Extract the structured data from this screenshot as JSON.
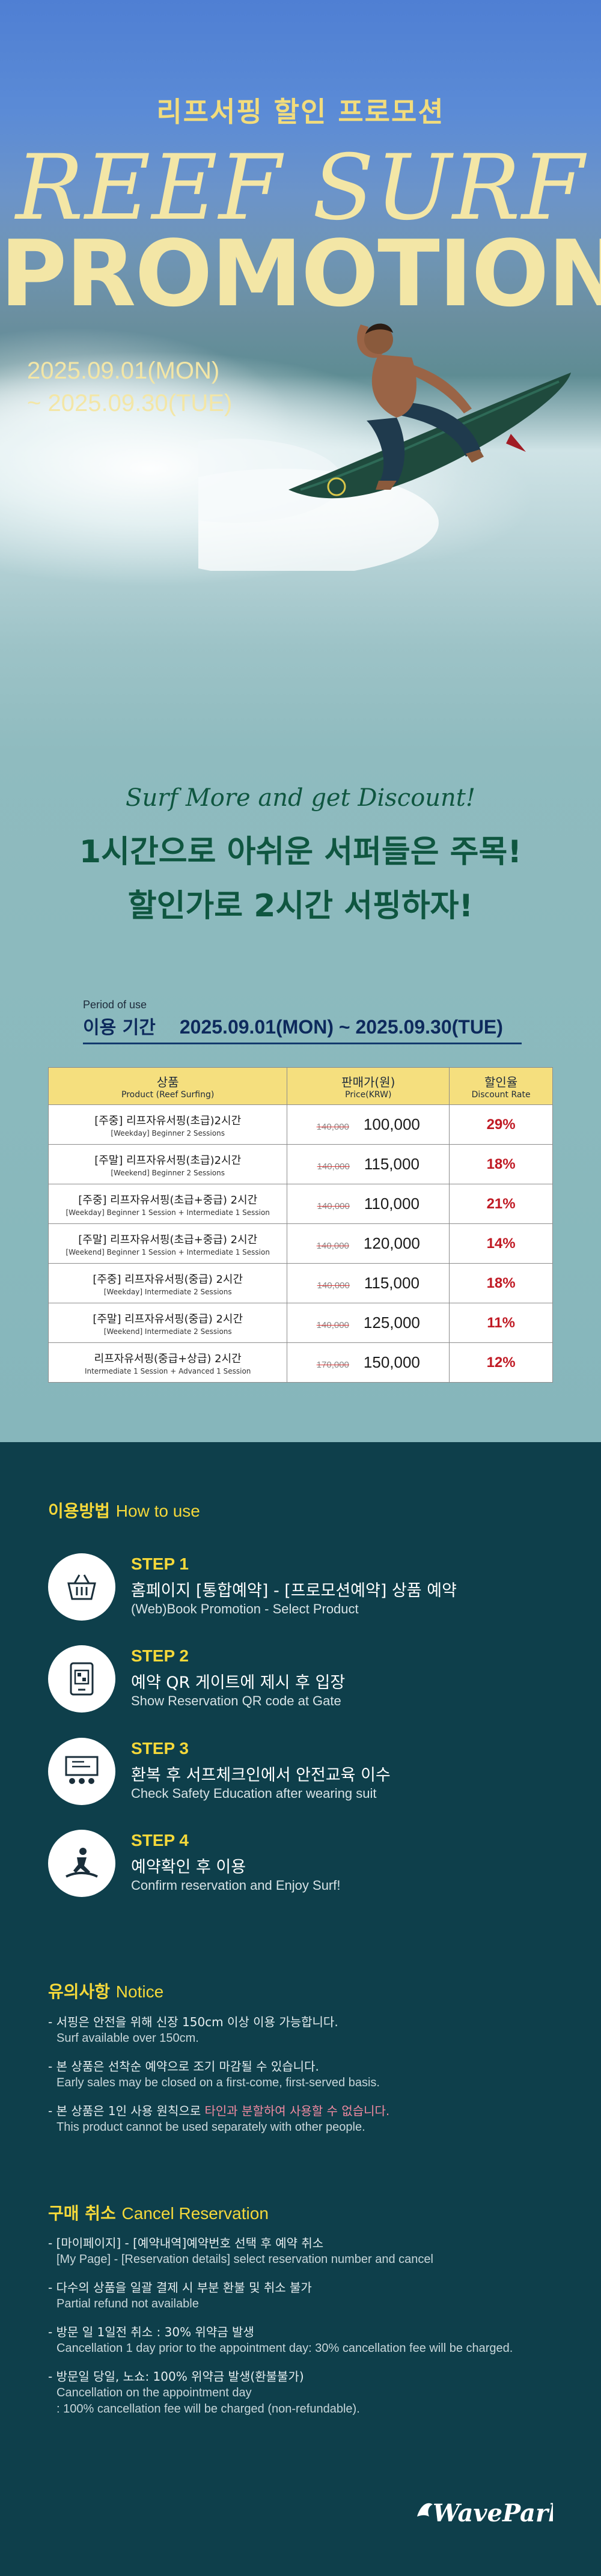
{
  "hero": {
    "title_kr": "리프서핑 할인 프로모션",
    "title_line1": "REEF SURF",
    "title_line2": "PROMOTION",
    "date_line1": "2025.09.01(MON)",
    "date_line2": "~ 2025.09.30(TUE)"
  },
  "slogan": {
    "en": "Surf More and get Discount!",
    "kr_line1": "1시간으로 아쉬운 서퍼들은 주목!",
    "kr_line2": "할인가로 2시간 서핑하자!"
  },
  "period": {
    "label_en": "Period of use",
    "label_kr": "이용 기간",
    "value": "2025.09.01(MON) ~ 2025.09.30(TUE)"
  },
  "table": {
    "headers": {
      "product_kr": "상품",
      "product_en": "Product (Reef Surfing)",
      "price_kr": "판매가(원)",
      "price_en": "Price(KRW)",
      "rate_kr": "할인율",
      "rate_en": "Discount Rate"
    },
    "rows": [
      {
        "name_kr": "[주중] 리프자유서핑(초급)2시간",
        "name_en": "[Weekday] Beginner 2 Sessions",
        "old_price": "140,000",
        "price": "100,000",
        "rate": "29%"
      },
      {
        "name_kr": "[주말] 리프자유서핑(초급)2시간",
        "name_en": "[Weekend] Beginner 2 Sessions",
        "old_price": "140,000",
        "price": "115,000",
        "rate": "18%"
      },
      {
        "name_kr": "[주중] 리프자유서핑(초급+중급) 2시간",
        "name_en": "[Weekday] Beginner 1 Session + Intermediate 1 Session",
        "old_price": "140,000",
        "price": "110,000",
        "rate": "21%"
      },
      {
        "name_kr": "[주말] 리프자유서핑(초급+중급) 2시간",
        "name_en": "[Weekend] Beginner 1 Session + Intermediate 1 Session",
        "old_price": "140,000",
        "price": "120,000",
        "rate": "14%"
      },
      {
        "name_kr": "[주중] 리프자유서핑(중급) 2시간",
        "name_en": "[Weekday] Intermediate 2 Sessions",
        "old_price": "140,000",
        "price": "115,000",
        "rate": "18%"
      },
      {
        "name_kr": "[주말] 리프자유서핑(중급) 2시간",
        "name_en": "[Weekend] Intermediate 2 Sessions",
        "old_price": "140,000",
        "price": "125,000",
        "rate": "11%"
      },
      {
        "name_kr": "리프자유서핑(중급+상급) 2시간",
        "name_en": "Intermediate 1 Session + Advanced 1 Session",
        "old_price": "170,000",
        "price": "150,000",
        "rate": "12%"
      }
    ]
  },
  "howto": {
    "title_kr": "이용방법",
    "title_en": "How to use",
    "steps": [
      {
        "label": "STEP 1",
        "kr": "홈페이지 [통합예약] - [프로모션예약] 상품 예약",
        "en": "(Web)Book Promotion - Select Product",
        "icon": "basket-icon"
      },
      {
        "label": "STEP 2",
        "kr": "예약 QR 게이트에 제시 후 입장",
        "en": "Show Reservation QR code at Gate",
        "icon": "qr-code-icon"
      },
      {
        "label": "STEP 3",
        "kr": "환복 후 서프체크인에서 안전교육 이수",
        "en": "Check Safety Education after wearing suit",
        "icon": "education-icon"
      },
      {
        "label": "STEP 4",
        "kr": "예약확인 후 이용",
        "en": "Confirm reservation and Enjoy Surf!",
        "icon": "surfer-icon"
      }
    ]
  },
  "notice": {
    "title_kr": "유의사항",
    "title_en": "Notice",
    "items": [
      {
        "kr": "- 서핑은 안전을 위해 신장 150cm 이상 이용 가능합니다.",
        "en": "Surf available over 150cm."
      },
      {
        "kr": "- 본 상품은 선착순 예약으로 조기 마감될 수 있습니다.",
        "en": "Early sales may be closed on a first-come, first-served basis."
      },
      {
        "kr_a": "- 본 상품은 1인 사용 원칙으로 ",
        "kr_hl": "타인과 분할하여 사용할 수 없습니다.",
        "en": "This product cannot be used separately with other people."
      }
    ]
  },
  "cancel": {
    "title_kr": "구매 취소",
    "title_en": "Cancel Reservation",
    "items": [
      {
        "kr": "- [마이페이지] - [예약내역]예약번호 선택 후 예약 취소",
        "en": "[My Page] - [Reservation details] select reservation number and cancel"
      },
      {
        "kr": "- 다수의 상품을 일괄 결제 시 부분 환불 및 취소 불가",
        "en": "Partial refund not available"
      },
      {
        "kr": "- 방문 일 1일전 취소 : 30% 위약금 발생",
        "en": "Cancellation 1 day prior to the appointment day: 30% cancellation fee will be charged."
      },
      {
        "kr": "- 방문일 당일, 노쇼: 100% 위약금 발생(환불불가)",
        "en": "Cancellation on the appointment day",
        "en2": ": 100% cancellation fee will be charged (non-refundable)."
      }
    ]
  },
  "logo": {
    "text": "WavePark"
  }
}
